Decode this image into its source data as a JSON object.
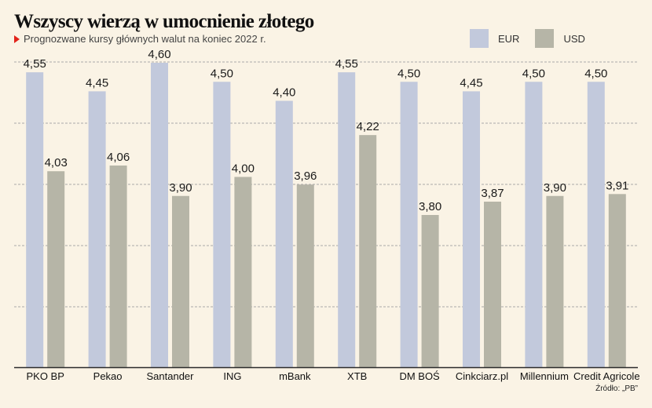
{
  "title": "Wszyscy wierzą w umocnienie złotego",
  "subtitle": "Prognozwane kursy głównych walut na koniec 2022 r.",
  "source": "Źródło: „PB”",
  "legend": [
    {
      "label": "EUR",
      "color": "#c2c9dc"
    },
    {
      "label": "USD",
      "color": "#b6b5a7"
    }
  ],
  "chart_data": {
    "type": "bar",
    "title": "Wszyscy wierzą w umocnienie złotego",
    "subtitle": "Prognozwane kursy głównych walut na koniec 2022 r.",
    "categories": [
      "PKO BP",
      "Pekao",
      "Santander",
      "ING",
      "mBank",
      "XTB",
      "DM BOŚ",
      "Cinkciarz.pl",
      "Millennium",
      "Credit Agricole"
    ],
    "series": [
      {
        "name": "EUR",
        "color": "#c2c9dc",
        "values": [
          4.55,
          4.45,
          4.6,
          4.5,
          4.4,
          4.55,
          4.5,
          4.45,
          4.5,
          4.5
        ],
        "labels": [
          "4,55",
          "4,45",
          "4,60",
          "4,50",
          "4,40",
          "4,55",
          "4,50",
          "4,45",
          "4,50",
          "4,50"
        ]
      },
      {
        "name": "USD",
        "color": "#b6b5a7",
        "values": [
          4.03,
          4.06,
          3.9,
          4.0,
          3.96,
          4.22,
          3.8,
          3.87,
          3.9,
          3.91
        ],
        "labels": [
          "4,03",
          "4,06",
          "3,90",
          "4,00",
          "3,96",
          "4,22",
          "3,80",
          "3,87",
          "3,90",
          "3,91"
        ]
      }
    ],
    "ylim": [
      3.0,
      4.6
    ],
    "grid": true,
    "legend_position": "top-right",
    "xlabel": "",
    "ylabel": ""
  }
}
